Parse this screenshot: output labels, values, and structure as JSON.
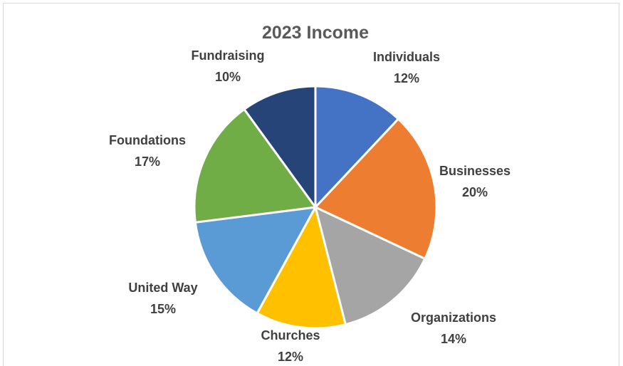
{
  "chart_data": {
    "type": "pie",
    "title": "2023 Income",
    "slices": [
      {
        "label": "Individuals",
        "value": 12,
        "display": "12%",
        "color": "#4472C4"
      },
      {
        "label": "Businesses",
        "value": 20,
        "display": "20%",
        "color": "#ED7D31"
      },
      {
        "label": "Organizations",
        "value": 14,
        "display": "14%",
        "color": "#A5A5A5"
      },
      {
        "label": "Churches",
        "value": 12,
        "display": "12%",
        "color": "#FFC000"
      },
      {
        "label": "United Way",
        "value": 15,
        "display": "15%",
        "color": "#5B9BD5"
      },
      {
        "label": "Foundations",
        "value": 17,
        "display": "17%",
        "color": "#70AD47"
      },
      {
        "label": "Fundraising",
        "value": 10,
        "display": "10%",
        "color": "#264478"
      }
    ],
    "legend": "none",
    "data_labels": "outside"
  }
}
